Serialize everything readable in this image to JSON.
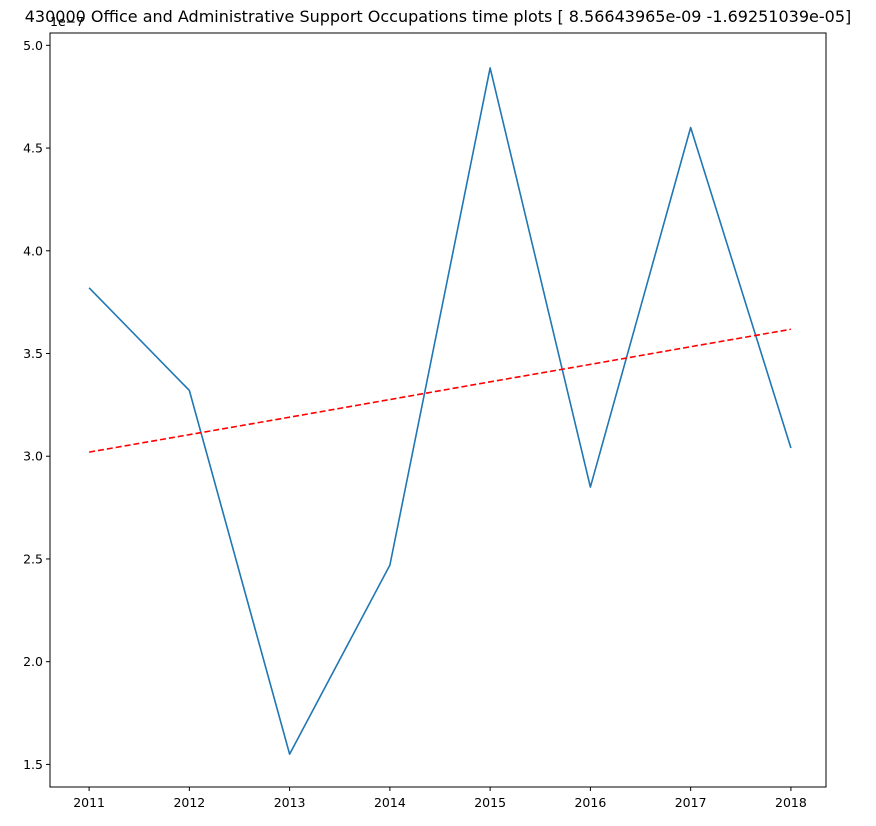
{
  "chart_data": {
    "type": "line",
    "title": "430000 Office and Administrative Support Occupations time plots [ 8.56643965e-09 -1.69251039e-05]",
    "xlabel": "",
    "ylabel": "",
    "offset_label": "1e−7",
    "x": [
      2011,
      2012,
      2013,
      2014,
      2015,
      2016,
      2017,
      2018
    ],
    "xlim": [
      2010.61,
      2018.35
    ],
    "ylim": [
      1.39,
      5.06
    ],
    "y_scale_exponent": -7,
    "x_ticks": [
      "2011",
      "2012",
      "2013",
      "2014",
      "2015",
      "2016",
      "2017",
      "2018"
    ],
    "y_ticks": [
      "1.5",
      "2.0",
      "2.5",
      "3.0",
      "3.5",
      "4.0",
      "4.5",
      "5.0"
    ],
    "y_tick_values": [
      1.5,
      2.0,
      2.5,
      3.0,
      3.5,
      4.0,
      4.5,
      5.0
    ],
    "grid": false,
    "series": [
      {
        "style": "solid",
        "color": "#1f77b4",
        "values": [
          3.82,
          3.32,
          1.55,
          2.47,
          4.89,
          2.85,
          4.6,
          3.04
        ]
      },
      {
        "style": "dashed",
        "color": "#ff0000",
        "values": [
          3.02,
          3.105,
          3.19,
          3.276,
          3.362,
          3.447,
          3.533,
          3.618
        ]
      }
    ]
  }
}
